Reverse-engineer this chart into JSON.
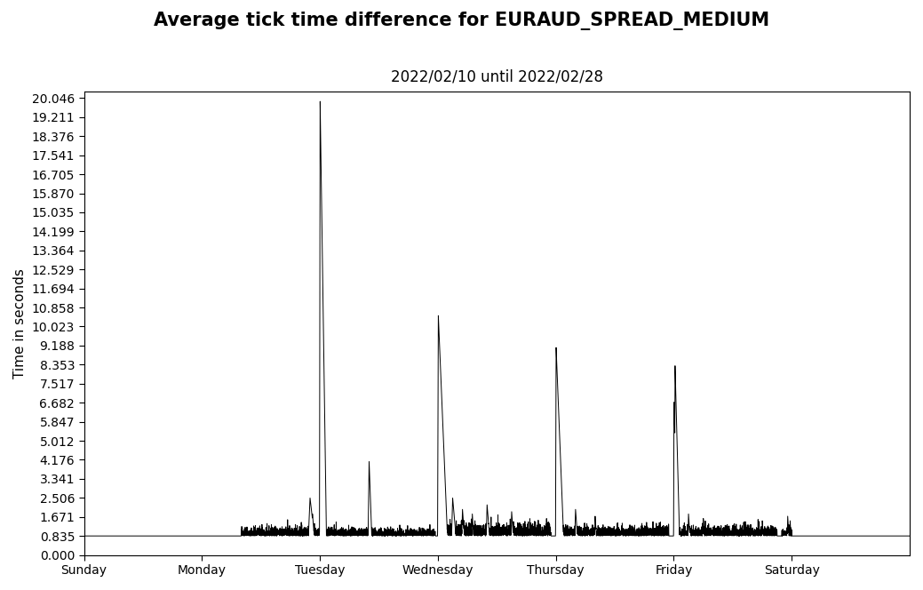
{
  "title": "Average tick time difference for EURAUD_SPREAD_MEDIUM",
  "subtitle": "2022/02/10 until 2022/02/28",
  "ylabel": "Time in seconds",
  "yticks": [
    0.0,
    0.835,
    1.671,
    2.506,
    3.341,
    4.176,
    5.012,
    5.847,
    6.682,
    7.517,
    8.353,
    9.188,
    10.023,
    10.858,
    11.694,
    12.529,
    13.364,
    14.199,
    15.035,
    15.87,
    16.705,
    17.541,
    18.376,
    19.211,
    20.046
  ],
  "xtick_labels": [
    "Sunday",
    "Monday",
    "Tuesday",
    "Wednesday",
    "Thursday",
    "Friday",
    "Saturday"
  ],
  "ymax": 20.046,
  "ymin": 0.0,
  "line_color": "#000000",
  "bg_color": "#ffffff",
  "title_fontsize": 15,
  "subtitle_fontsize": 12,
  "label_fontsize": 11,
  "tick_fontsize": 10,
  "n_points": 10080,
  "days": 7
}
